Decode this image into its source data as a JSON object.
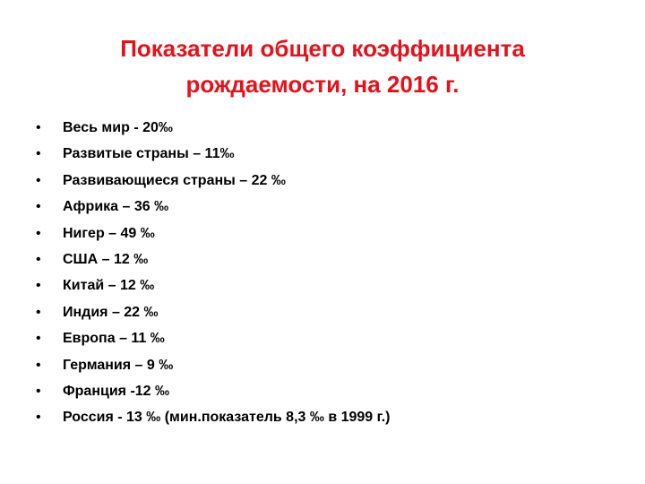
{
  "slide": {
    "title_line1": "Показатели общего коэффициента",
    "title_line2": "рождаемости, на 2016 г.",
    "bullet_symbol": "•",
    "items": [
      "Весь мир - 20‰",
      "Развитые страны – 11‰",
      "Развивающиеся страны – 22 ‰",
      "Африка – 36 ‰",
      "Нигер – 49 ‰",
      "США – 12 ‰",
      "Китай – 12 ‰",
      "Индия – 22 ‰",
      "Европа – 11 ‰",
      "Германия – 9 ‰",
      "Франция -12 ‰",
      "Россия - 13 ‰  (мин.показатель 8,3 ‰ в 1999 г.)"
    ]
  },
  "colors": {
    "title": "#e3121b",
    "text": "#000000",
    "background": "#ffffff"
  }
}
